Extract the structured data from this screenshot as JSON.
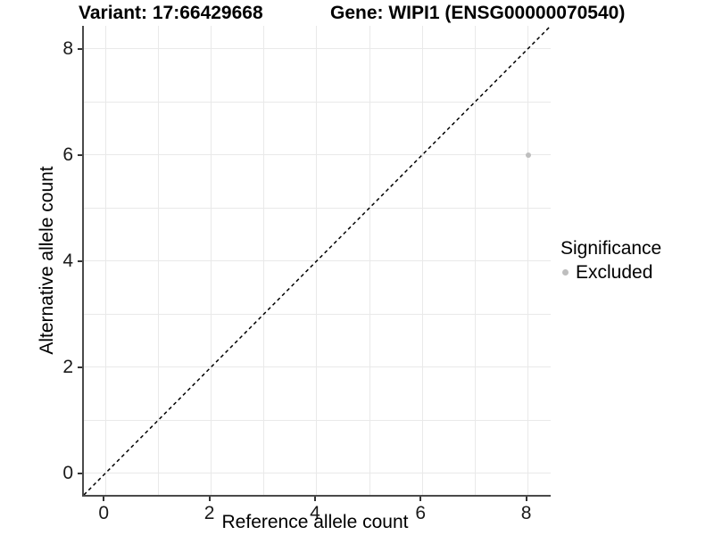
{
  "header": {
    "title_left": "Variant: 17:66429668",
    "title_right": "Gene: WIPI1 (ENSG00000070540)"
  },
  "chart_data": {
    "type": "scatter",
    "title": "Variant: 17:66429668   Gene: WIPI1 (ENSG00000070540)",
    "xlabel": "Reference allele count",
    "ylabel": "Alternative allele count",
    "xlim": [
      -0.41,
      8.43
    ],
    "ylim": [
      -0.41,
      8.43
    ],
    "x_ticks": [
      0,
      2,
      4,
      6,
      8
    ],
    "y_ticks": [
      0,
      2,
      4,
      6,
      8
    ],
    "grid": {
      "on": true,
      "every": 1,
      "color": "#e9e9e9"
    },
    "axis_line_color": "#4a4a4a",
    "identity_line": {
      "equation": "y = x",
      "style": "dashed",
      "color": "#000000"
    },
    "series": [
      {
        "name": "Excluded",
        "color": "#bebebe",
        "points": [
          {
            "x": 8,
            "y": 6
          }
        ]
      }
    ],
    "legend": {
      "title": "Significance",
      "position": "right",
      "entries": [
        {
          "label": "Excluded",
          "color": "#bebebe"
        }
      ]
    }
  }
}
